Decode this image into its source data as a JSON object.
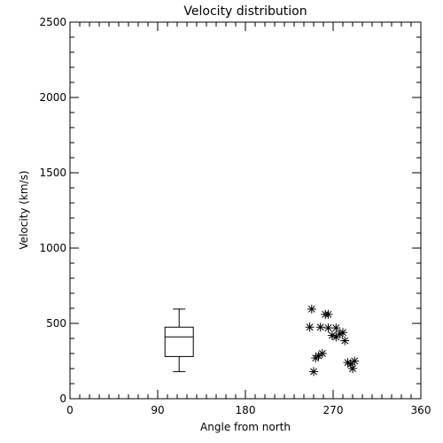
{
  "chart_data": {
    "type": "scatter",
    "title": "Velocity distribution",
    "xlabel": "Angle from north",
    "ylabel": "Velocity (km/s)",
    "xlim": [
      0,
      360
    ],
    "ylim": [
      0,
      2500
    ],
    "x_ticks": [
      0,
      90,
      180,
      270,
      360
    ],
    "x_tick_labels": [
      "0",
      "90",
      "180",
      "270",
      "360"
    ],
    "y_ticks": [
      0,
      500,
      1000,
      1500,
      2000,
      2500
    ],
    "y_tick_labels": [
      "0",
      "500",
      "1000",
      "1500",
      "2000",
      "2500"
    ],
    "grid": false,
    "boxplot": {
      "x": 112,
      "min": 180,
      "q1": 280,
      "median": 410,
      "q3": 475,
      "max": 595
    },
    "points": [
      {
        "x": 248,
        "y": 595
      },
      {
        "x": 246,
        "y": 475
      },
      {
        "x": 257,
        "y": 475
      },
      {
        "x": 262,
        "y": 560
      },
      {
        "x": 265,
        "y": 560
      },
      {
        "x": 265,
        "y": 470
      },
      {
        "x": 269,
        "y": 420
      },
      {
        "x": 273,
        "y": 410
      },
      {
        "x": 273,
        "y": 470
      },
      {
        "x": 277,
        "y": 430
      },
      {
        "x": 280,
        "y": 440
      },
      {
        "x": 282,
        "y": 385
      },
      {
        "x": 285,
        "y": 240
      },
      {
        "x": 288,
        "y": 230
      },
      {
        "x": 290,
        "y": 200
      },
      {
        "x": 292,
        "y": 250
      },
      {
        "x": 252,
        "y": 270
      },
      {
        "x": 255,
        "y": 285
      },
      {
        "x": 259,
        "y": 300
      },
      {
        "x": 250,
        "y": 180
      }
    ]
  }
}
